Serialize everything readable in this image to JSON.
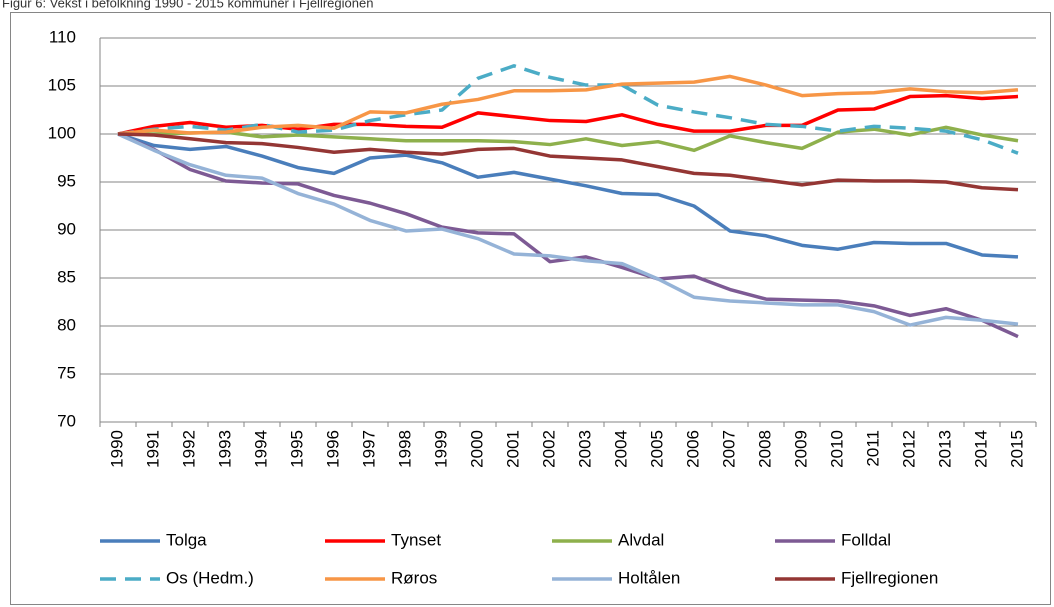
{
  "chart_data": {
    "type": "line",
    "title": "Figur 6: Vekst i befolkning 1990 - 2015 kommuner i Fjellregionen",
    "categories": [
      "1990",
      "1991",
      "1992",
      "1993",
      "1994",
      "1995",
      "1996",
      "1997",
      "1998",
      "1999",
      "2000",
      "2001",
      "2002",
      "2003",
      "2004",
      "2005",
      "2006",
      "2007",
      "2008",
      "2009",
      "2010",
      "2011",
      "2012",
      "2013",
      "2014",
      "2015"
    ],
    "ylim": [
      70,
      110
    ],
    "yticks": [
      70,
      75,
      80,
      85,
      90,
      95,
      100,
      105,
      110
    ],
    "grid": true,
    "legend": "bottom",
    "series": [
      {
        "name": "Tolga",
        "color": "#4a7ebb",
        "line_style": "solid",
        "values": [
          100,
          98.8,
          98.4,
          98.7,
          97.7,
          96.5,
          95.9,
          97.5,
          97.8,
          97.0,
          95.5,
          96.0,
          95.3,
          94.6,
          93.8,
          93.7,
          92.5,
          89.9,
          89.4,
          88.4,
          88.0,
          88.7,
          88.6,
          88.6,
          87.4,
          87.2
        ]
      },
      {
        "name": "Tynset",
        "color": "#ff0000",
        "line_style": "solid",
        "values": [
          100,
          100.8,
          101.2,
          100.7,
          100.9,
          100.5,
          101.0,
          101.0,
          100.8,
          100.7,
          102.2,
          101.8,
          101.4,
          101.3,
          102.0,
          101.0,
          100.3,
          100.3,
          100.9,
          100.9,
          102.5,
          102.6,
          103.9,
          104.0,
          103.7,
          103.9
        ]
      },
      {
        "name": "Alvdal",
        "color": "#8eb04c",
        "line_style": "solid",
        "values": [
          100,
          100.0,
          100.1,
          100.2,
          99.7,
          99.9,
          99.7,
          99.5,
          99.3,
          99.3,
          99.3,
          99.2,
          98.9,
          99.5,
          98.8,
          99.2,
          98.3,
          99.8,
          99.1,
          98.5,
          100.2,
          100.5,
          99.9,
          100.7,
          99.9,
          99.3
        ]
      },
      {
        "name": "Folldal",
        "color": "#7d5a94",
        "line_style": "solid",
        "values": [
          100,
          98.4,
          96.3,
          95.1,
          94.9,
          94.8,
          93.6,
          92.8,
          91.7,
          90.3,
          89.7,
          89.6,
          86.7,
          87.2,
          86.1,
          84.9,
          85.2,
          83.8,
          82.8,
          82.7,
          82.6,
          82.1,
          81.1,
          81.8,
          80.6,
          78.9
        ]
      },
      {
        "name": "Os (Hedm.)",
        "color": "#4bacc6",
        "line_style": "dashed",
        "values": [
          100,
          100.5,
          100.8,
          100.4,
          101.0,
          100.2,
          100.4,
          101.4,
          102.0,
          102.5,
          105.8,
          107.1,
          105.9,
          105.1,
          105.1,
          103.0,
          102.3,
          101.7,
          101.0,
          100.8,
          100.3,
          100.8,
          100.6,
          100.3,
          99.4,
          98.0
        ]
      },
      {
        "name": "Røros",
        "color": "#f79646",
        "line_style": "solid",
        "values": [
          100,
          100.4,
          100.1,
          100.2,
          100.7,
          100.9,
          100.6,
          102.3,
          102.2,
          103.1,
          103.6,
          104.5,
          104.5,
          104.6,
          105.2,
          105.3,
          105.4,
          106.0,
          105.1,
          104.0,
          104.2,
          104.3,
          104.7,
          104.4,
          104.3,
          104.6
        ]
      },
      {
        "name": "Holtålen",
        "color": "#95b3d7",
        "line_style": "solid",
        "values": [
          100,
          98.3,
          96.8,
          95.7,
          95.4,
          93.8,
          92.7,
          91.0,
          89.9,
          90.1,
          89.1,
          87.5,
          87.3,
          86.8,
          86.5,
          84.9,
          83.0,
          82.6,
          82.4,
          82.2,
          82.2,
          81.5,
          80.1,
          80.9,
          80.6,
          80.2
        ]
      },
      {
        "name": "Fjellregionen",
        "color": "#943634",
        "line_style": "solid",
        "values": [
          100,
          99.9,
          99.5,
          99.1,
          99.0,
          98.6,
          98.1,
          98.4,
          98.1,
          97.9,
          98.4,
          98.5,
          97.7,
          97.5,
          97.3,
          96.6,
          95.9,
          95.7,
          95.2,
          94.7,
          95.2,
          95.1,
          95.1,
          95.0,
          94.4,
          94.2
        ]
      }
    ]
  }
}
